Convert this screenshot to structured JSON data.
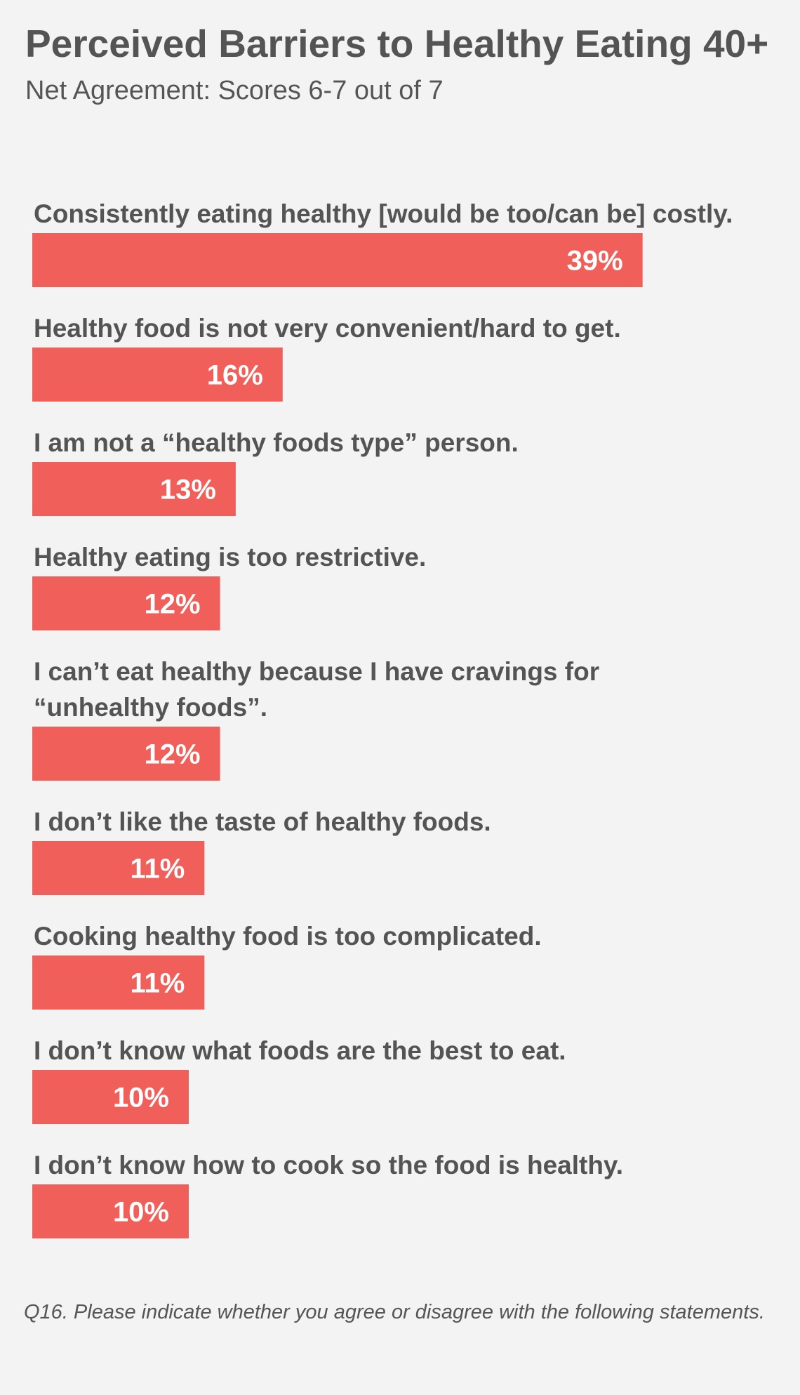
{
  "header": {
    "title": "Perceived Barriers to Healthy Eating 40+",
    "subtitle": "Net Agreement: Scores 6-7 out of 7"
  },
  "footnote": "Q16. Please indicate whether you agree or disagree with the following statements.",
  "colors": {
    "bar": "#f15f5a",
    "background": "#f3f3f3",
    "text": "#545454",
    "data_label": "#ffffff"
  },
  "chart_data": {
    "type": "bar",
    "orientation": "horizontal",
    "title": "Perceived Barriers to Healthy Eating 40+",
    "subtitle": "Net Agreement: Scores 6-7 out of 7",
    "xlabel": "",
    "ylabel": "",
    "grid": false,
    "legend": "none",
    "categories": [
      "Consistently eating healthy [would be too/can be] costly.",
      "Healthy food is not very convenient/hard to get.",
      "I am not a “healthy foods type” person.",
      "Healthy eating is too restrictive.",
      "I can’t eat healthy because I have cravings for “unhealthy foods”.",
      "I don’t like the taste of healthy foods.",
      "Cooking healthy food is too complicated.",
      "I don’t know what foods are the best to eat.",
      "I don’t know how to cook so the food is healthy."
    ],
    "category_lines": [
      [
        "Consistently eating healthy [would be too/can be] costly."
      ],
      [
        "Healthy food is not very convenient/hard to get."
      ],
      [
        "I am not a “healthy foods type” person."
      ],
      [
        "Healthy eating is too restrictive."
      ],
      [
        "I can’t eat healthy because I have cravings for",
        "“unhealthy foods”."
      ],
      [
        "I don’t like the taste of healthy foods."
      ],
      [
        "Cooking healthy food is too complicated."
      ],
      [
        "I don’t know what foods are the best to eat."
      ],
      [
        "I don’t know how to cook so the food is healthy."
      ]
    ],
    "values": [
      39,
      16,
      13,
      12,
      12,
      11,
      11,
      10,
      10
    ],
    "value_labels": [
      "39%",
      "16%",
      "13%",
      "12%",
      "12%",
      "11%",
      "11%",
      "10%",
      "10%"
    ],
    "unit": "%"
  }
}
